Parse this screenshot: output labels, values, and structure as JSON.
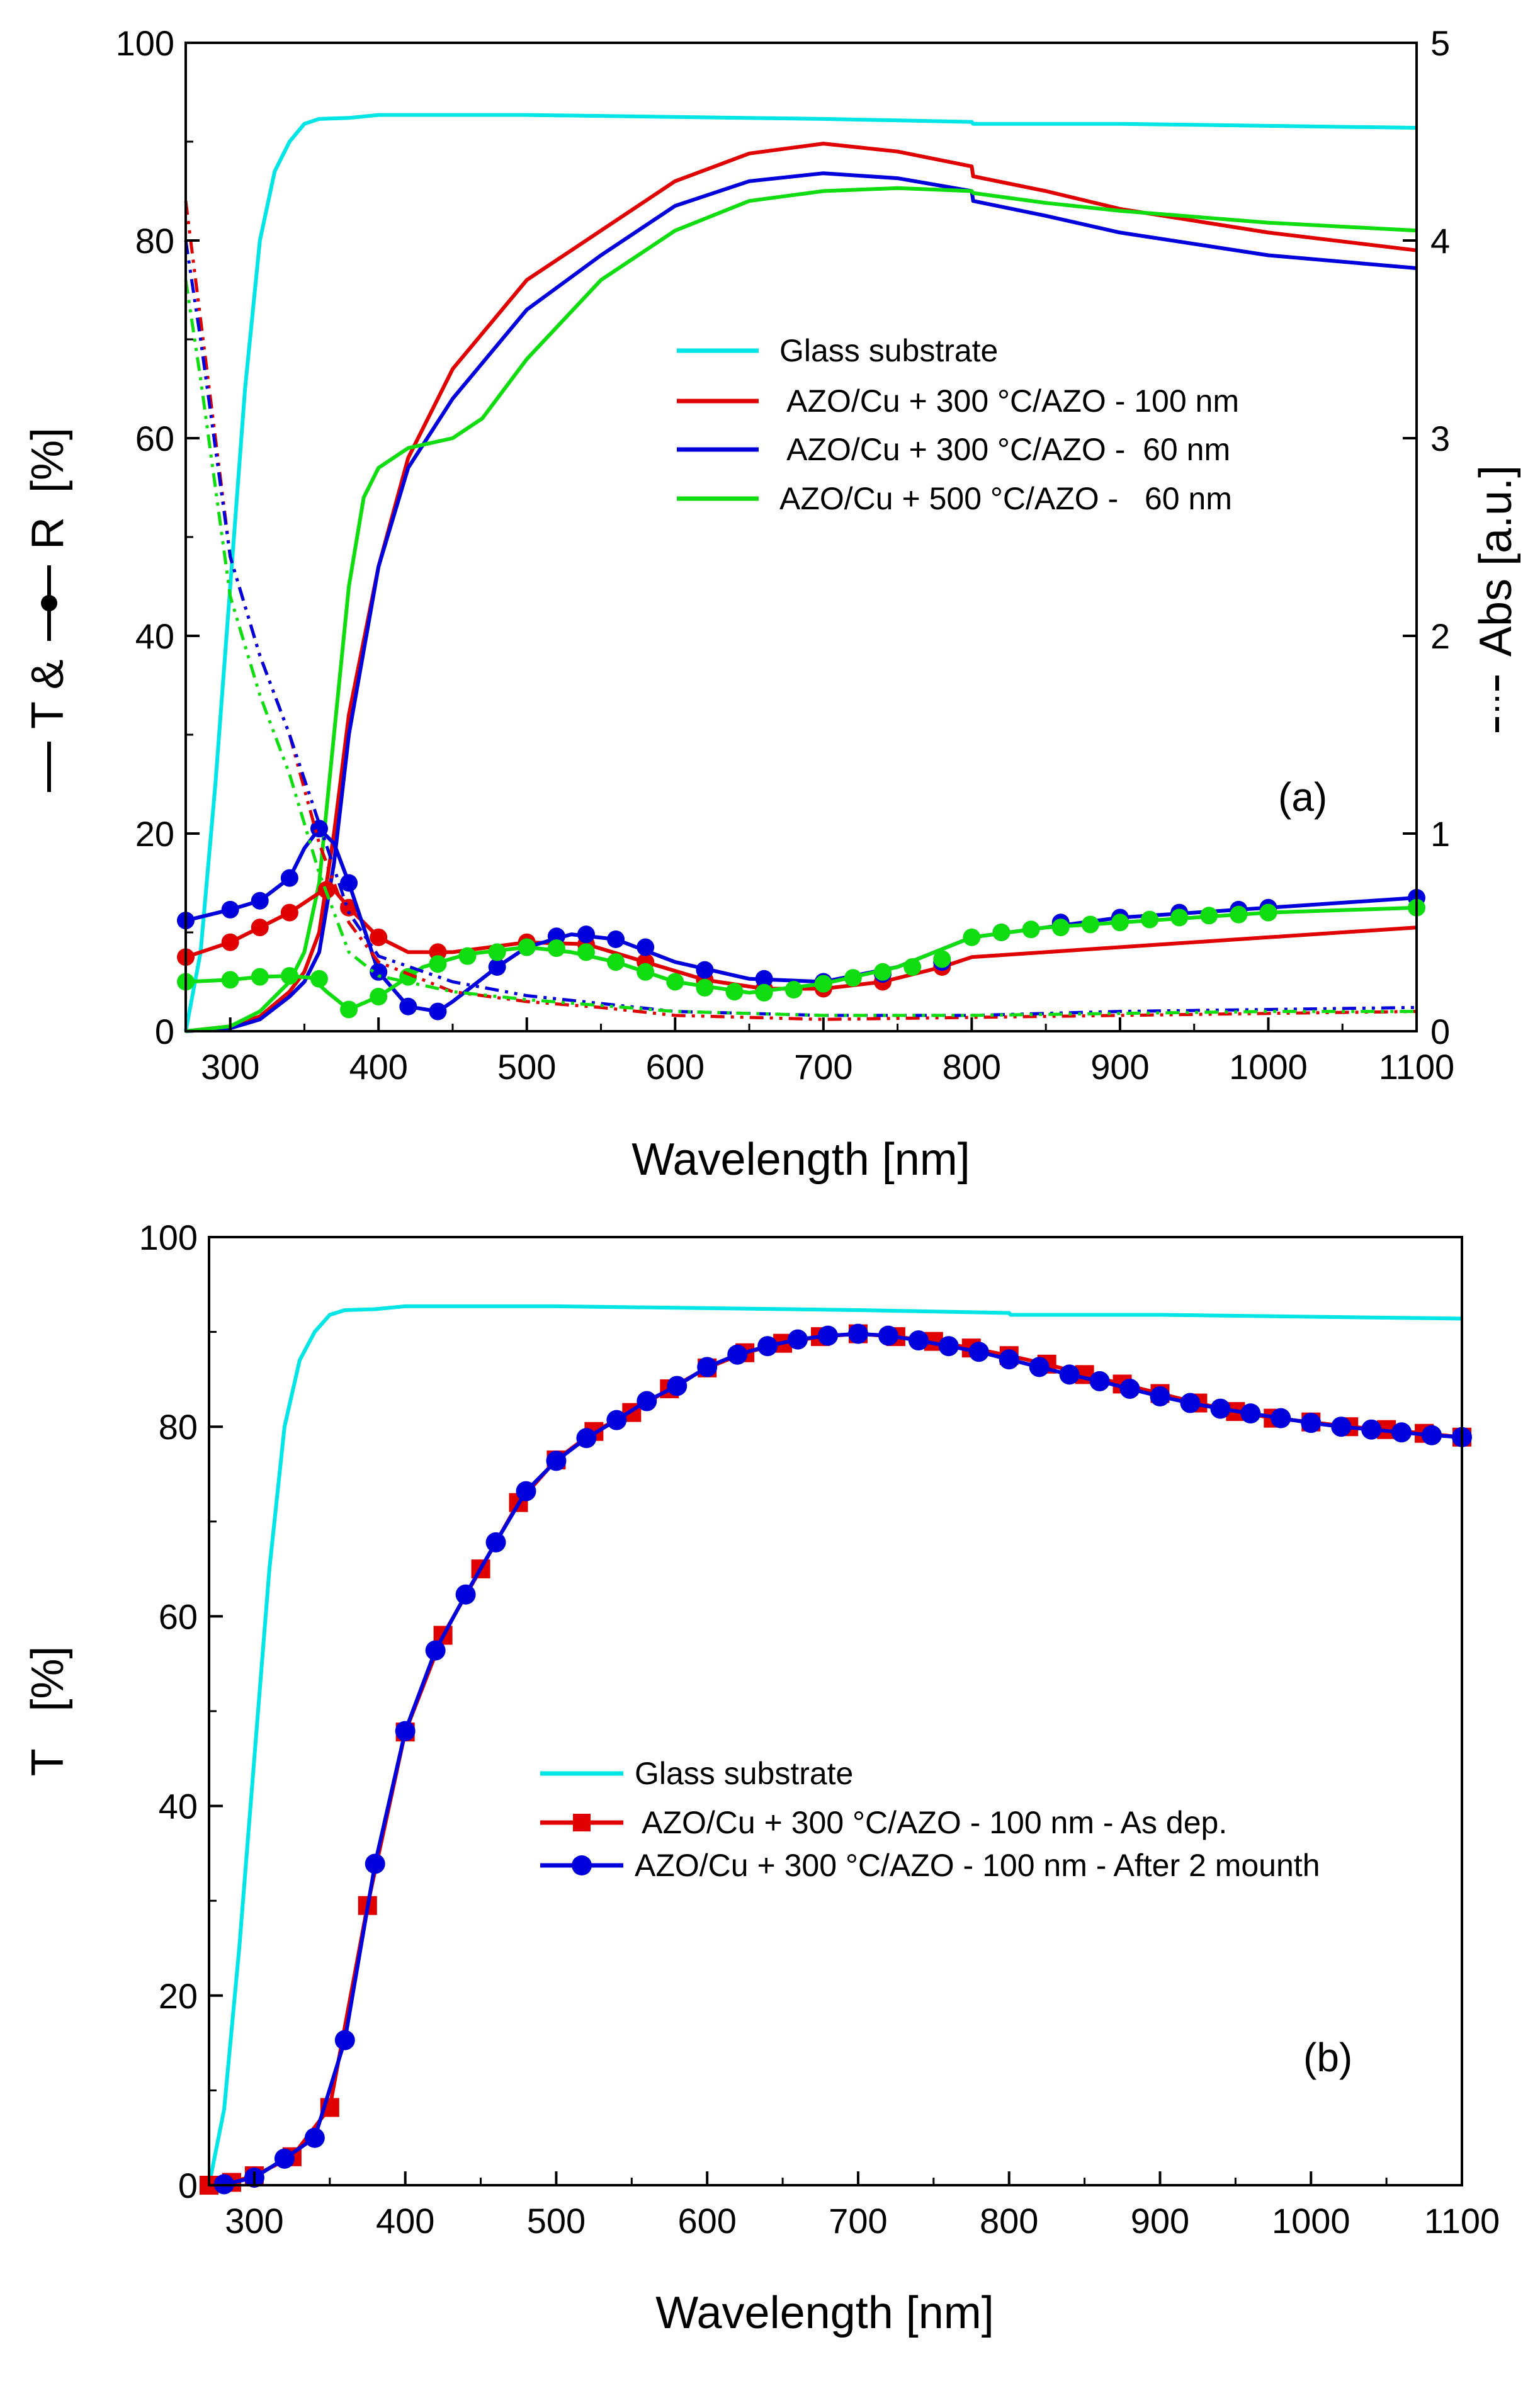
{
  "chart_data": [
    {
      "id": "a",
      "type": "line",
      "panel_label": "(a)",
      "xlabel": "Wavelength [nm]",
      "ylabel_left": "T & R [%]",
      "ylabel_left_parts": [
        "T &",
        "R",
        "[%]"
      ],
      "ylabel_right": "Abs [a.u.]",
      "xlim": [
        270,
        1100
      ],
      "ylim_left": [
        0,
        100
      ],
      "ylim_right": [
        0,
        5
      ],
      "xticks": [
        300,
        400,
        500,
        600,
        700,
        800,
        900,
        1000,
        1100
      ],
      "yticks_left": [
        0,
        20,
        40,
        60,
        80,
        100
      ],
      "yticks_right": [
        0,
        1,
        2,
        3,
        4,
        5
      ],
      "legend_position": "center-right",
      "legend": [
        {
          "label": "Glass substrate",
          "color": "#00e5e5"
        },
        {
          "label": " AZO/Cu + 300 °C/AZO - 100 nm",
          "color": "#e00000"
        },
        {
          "label": " AZO/Cu + 300 °C/AZO -  60 nm",
          "color": "#0000dd"
        },
        {
          "label": "AZO/Cu + 500 °C/AZO -   60 nm",
          "color": "#10dd10"
        }
      ],
      "series": [
        {
          "name": "Glass substrate - T",
          "color": "#00e5e5",
          "style": "solid",
          "axis": "left",
          "x": [
            270,
            280,
            290,
            300,
            310,
            320,
            330,
            340,
            350,
            360,
            380,
            400,
            500,
            600,
            700,
            800,
            801,
            900,
            1000,
            1100
          ],
          "y": [
            0,
            8,
            25,
            45,
            65,
            80,
            87,
            90,
            91.8,
            92.3,
            92.4,
            92.7,
            92.7,
            92.5,
            92.3,
            92.0,
            91.8,
            91.8,
            91.6,
            91.4
          ]
        },
        {
          "name": "AZO/Cu + 300 °C/AZO - 100 nm - T",
          "color": "#e00000",
          "style": "solid",
          "axis": "left",
          "x": [
            270,
            300,
            320,
            340,
            350,
            360,
            370,
            380,
            400,
            420,
            450,
            500,
            550,
            600,
            650,
            700,
            750,
            800,
            801,
            850,
            900,
            1000,
            1100
          ],
          "y": [
            0,
            0.5,
            1.5,
            4,
            6,
            10,
            20,
            32,
            47,
            58,
            67,
            76,
            81,
            86,
            88.8,
            89.8,
            89,
            87.5,
            86.5,
            85,
            83.2,
            80.8,
            79
          ]
        },
        {
          "name": "AZO/Cu + 300 °C/AZO - 60 nm - T",
          "color": "#0000dd",
          "style": "solid",
          "axis": "left",
          "x": [
            270,
            300,
            320,
            340,
            350,
            360,
            370,
            380,
            400,
            420,
            450,
            500,
            550,
            600,
            650,
            700,
            750,
            800,
            801,
            850,
            900,
            1000,
            1100
          ],
          "y": [
            0,
            0.3,
            1.2,
            3.5,
            5,
            8,
            17,
            30,
            47,
            57,
            64,
            73,
            78.5,
            83.5,
            86,
            86.8,
            86.3,
            85,
            84,
            82.5,
            80.8,
            78.5,
            77.2
          ]
        },
        {
          "name": "AZO/Cu + 500 °C/AZO - 60 nm - T",
          "color": "#10dd10",
          "style": "solid",
          "axis": "left",
          "x": [
            270,
            300,
            320,
            340,
            350,
            360,
            370,
            380,
            390,
            400,
            420,
            450,
            470,
            500,
            550,
            600,
            650,
            700,
            750,
            800,
            801,
            850,
            900,
            1000,
            1100
          ],
          "y": [
            0,
            0.5,
            2,
            5,
            8,
            15,
            30,
            45,
            54,
            57,
            59,
            60,
            62,
            68,
            76,
            81,
            84,
            85,
            85.3,
            85,
            84.8,
            83.8,
            83,
            81.8,
            81
          ]
        },
        {
          "name": "AZO/Cu + 300 °C/AZO - 100 nm - R",
          "color": "#e00000",
          "style": "marker-line",
          "axis": "left",
          "x": [
            270,
            300,
            320,
            340,
            360,
            370,
            380,
            400,
            420,
            450,
            500,
            540,
            580,
            620,
            660,
            700,
            740,
            780,
            800,
            850,
            900,
            1000,
            1100
          ],
          "y": [
            7.5,
            9,
            10.5,
            12,
            14,
            14.3,
            12.5,
            9.5,
            8,
            8,
            9,
            8.8,
            7,
            5.2,
            4.3,
            4.3,
            5,
            6.5,
            7.5,
            8,
            8.5,
            9.5,
            10.5
          ],
          "markers_x": [
            270,
            300,
            320,
            340,
            365,
            380,
            400,
            440,
            500,
            540,
            580,
            620,
            660,
            700,
            740,
            780
          ],
          "markers_y": [
            7.5,
            9,
            10.5,
            12,
            14.3,
            12.5,
            9.5,
            8,
            9,
            8.8,
            7,
            5.2,
            4.3,
            4.3,
            5,
            6.5
          ]
        },
        {
          "name": "AZO/Cu + 300 °C/AZO - 60 nm - R",
          "color": "#0000dd",
          "style": "marker-line",
          "axis": "left",
          "x": [
            270,
            300,
            320,
            340,
            350,
            360,
            370,
            380,
            400,
            420,
            440,
            450,
            480,
            500,
            530,
            560,
            600,
            650,
            700,
            750,
            800,
            900,
            1000,
            1100
          ],
          "y": [
            11.2,
            12.3,
            13.2,
            15.5,
            18.5,
            20.5,
            19,
            15,
            6,
            2.5,
            2,
            3,
            6.5,
            8.5,
            9.8,
            9.3,
            7,
            5.3,
            5,
            6.5,
            9.5,
            11.5,
            12.5,
            13.5
          ],
          "markers_x": [
            270,
            300,
            320,
            340,
            360,
            380,
            400,
            420,
            440,
            480,
            500,
            520,
            540,
            560,
            580,
            620,
            660,
            700,
            740,
            780,
            820,
            860,
            900,
            940,
            980,
            1000,
            1100
          ],
          "markers_y": [
            11.2,
            12.3,
            13.2,
            15.5,
            20.5,
            15,
            6,
            2.5,
            2,
            6.5,
            8.5,
            9.6,
            9.8,
            9.3,
            8.5,
            6.2,
            5.3,
            5,
            5.8,
            7,
            10,
            11,
            11.5,
            12,
            12.3,
            12.5,
            13.5
          ]
        },
        {
          "name": "AZO/Cu + 500 °C/AZO - 60 nm - R",
          "color": "#10dd10",
          "style": "marker-line",
          "axis": "left",
          "x": [
            270,
            300,
            320,
            340,
            355,
            365,
            380,
            400,
            430,
            460,
            500,
            530,
            560,
            600,
            650,
            700,
            750,
            800,
            850,
            900,
            1000,
            1100
          ],
          "y": [
            5,
            5.2,
            5.5,
            5.6,
            5.4,
            4,
            2.2,
            3.5,
            6.5,
            7.8,
            8.5,
            8,
            7,
            5,
            3.9,
            4.8,
            6.5,
            9.5,
            10.5,
            11,
            12,
            12.5
          ],
          "markers_x": [
            270,
            300,
            320,
            340,
            360,
            380,
            400,
            420,
            440,
            460,
            480,
            500,
            520,
            540,
            560,
            580,
            600,
            620,
            640,
            660,
            680,
            700,
            720,
            740,
            760,
            780,
            800,
            820,
            840,
            860,
            880,
            900,
            920,
            940,
            960,
            980,
            1000,
            1100
          ],
          "markers_y": [
            5,
            5.2,
            5.5,
            5.6,
            5.3,
            2.2,
            3.5,
            5.5,
            6.8,
            7.6,
            8,
            8.5,
            8.4,
            8,
            7,
            6,
            5,
            4.4,
            4,
            3.9,
            4.2,
            4.8,
            5.4,
            6,
            6.5,
            7.3,
            9.5,
            10,
            10.3,
            10.5,
            10.8,
            11,
            11.3,
            11.5,
            11.7,
            11.8,
            12,
            12.5
          ]
        },
        {
          "name": "AZO/Cu + 300 °C/AZO - 100 nm - Abs",
          "color": "#e00000",
          "style": "dash-dot",
          "axis": "right",
          "x": [
            270,
            280,
            300,
            320,
            340,
            360,
            380,
            400,
            450,
            500,
            550,
            600,
            700,
            800,
            900,
            1000,
            1100
          ],
          "y": [
            4.2,
            3.6,
            2.4,
            1.9,
            1.5,
            0.95,
            0.55,
            0.35,
            0.2,
            0.15,
            0.12,
            0.08,
            0.06,
            0.07,
            0.08,
            0.09,
            0.1
          ]
        },
        {
          "name": "AZO/Cu + 300 °C/AZO - 60 nm - Abs",
          "color": "#0000dd",
          "style": "dash-dot",
          "axis": "right",
          "x": [
            270,
            280,
            300,
            320,
            340,
            360,
            380,
            400,
            450,
            500,
            550,
            600,
            700,
            800,
            900,
            1000,
            1100
          ],
          "y": [
            4,
            3.5,
            2.4,
            1.9,
            1.5,
            1.05,
            0.6,
            0.38,
            0.25,
            0.18,
            0.14,
            0.1,
            0.08,
            0.08,
            0.1,
            0.11,
            0.12
          ]
        },
        {
          "name": "AZO/Cu + 500 °C/AZO - 60 nm - Abs",
          "color": "#10dd10",
          "style": "dash-dot",
          "axis": "right",
          "x": [
            270,
            280,
            300,
            320,
            330,
            340,
            360,
            380,
            400,
            450,
            500,
            550,
            600,
            700,
            800,
            900,
            1000,
            1100
          ],
          "y": [
            3.8,
            3.3,
            2.2,
            1.7,
            1.5,
            1.3,
            0.8,
            0.4,
            0.28,
            0.2,
            0.16,
            0.13,
            0.1,
            0.08,
            0.08,
            0.09,
            0.1,
            0.1
          ]
        }
      ]
    },
    {
      "id": "b",
      "type": "line",
      "panel_label": "(b)",
      "xlabel": "Wavelength [nm]",
      "ylabel": "T   [%]",
      "xlim": [
        270,
        1100
      ],
      "ylim": [
        0,
        100
      ],
      "xticks": [
        300,
        400,
        500,
        600,
        700,
        800,
        900,
        1000,
        1100
      ],
      "yticks": [
        0,
        20,
        40,
        60,
        80,
        100
      ],
      "legend_position": "center-right",
      "legend": [
        {
          "label": "Glass substrate",
          "color": "#00e5e5",
          "marker": "none"
        },
        {
          "label": " AZO/Cu + 300 °C/AZO - 100 nm - As dep.",
          "color": "#e00000",
          "marker": "square"
        },
        {
          "label": "AZO/Cu + 300 °C/AZO - 100 nm - After 2 mounth",
          "color": "#0000dd",
          "marker": "circle"
        }
      ],
      "series": [
        {
          "name": "Glass substrate",
          "color": "#00e5e5",
          "marker": "none",
          "x": [
            270,
            280,
            290,
            300,
            310,
            320,
            330,
            340,
            350,
            360,
            380,
            400,
            500,
            600,
            700,
            800,
            801,
            900,
            1000,
            1100
          ],
          "y": [
            0,
            8,
            25,
            45,
            65,
            80,
            87,
            90,
            91.8,
            92.3,
            92.4,
            92.7,
            92.7,
            92.5,
            92.3,
            92.0,
            91.8,
            91.8,
            91.6,
            91.4
          ]
        },
        {
          "name": "AZO/Cu + 300 °C/AZO - 100 nm - As dep.",
          "color": "#e00000",
          "marker": "square",
          "x": [
            270,
            285,
            300,
            325,
            350,
            375,
            400,
            425,
            450,
            475,
            500,
            525,
            550,
            575,
            600,
            625,
            650,
            675,
            700,
            725,
            750,
            775,
            800,
            825,
            850,
            875,
            900,
            925,
            950,
            975,
            1000,
            1025,
            1050,
            1075,
            1100
          ],
          "y": [
            0,
            0.3,
            1,
            3,
            8.2,
            29.5,
            47.8,
            58,
            65,
            72,
            76.5,
            79.5,
            81.5,
            84,
            86.2,
            87.8,
            88.8,
            89.5,
            89.8,
            89.5,
            89,
            88.3,
            87.5,
            86.6,
            85.5,
            84.5,
            83.5,
            82.5,
            81.6,
            80.9,
            80.5,
            80,
            79.7,
            79.3,
            78.9
          ]
        },
        {
          "name": "AZO/Cu + 300 °C/AZO - 100 nm - After 2 mounth",
          "color": "#0000dd",
          "marker": "circle",
          "x": [
            280,
            300,
            320,
            340,
            360,
            380,
            400,
            420,
            440,
            460,
            480,
            500,
            520,
            540,
            560,
            580,
            600,
            620,
            640,
            660,
            680,
            700,
            720,
            740,
            760,
            780,
            800,
            820,
            840,
            860,
            880,
            900,
            920,
            940,
            960,
            980,
            1000,
            1020,
            1040,
            1060,
            1080,
            1100
          ],
          "y": [
            0.1,
            0.8,
            2.8,
            5,
            15.3,
            33.9,
            47.9,
            56.4,
            62.3,
            67.8,
            73.2,
            76.4,
            78.8,
            80.7,
            82.7,
            84.3,
            86.3,
            87.6,
            88.5,
            89.2,
            89.6,
            89.8,
            89.6,
            89.1,
            88.5,
            87.9,
            87.1,
            86.3,
            85.5,
            84.8,
            84.0,
            83.2,
            82.5,
            81.9,
            81.4,
            80.9,
            80.4,
            80.0,
            79.7,
            79.4,
            79.1,
            78.9
          ]
        }
      ]
    }
  ]
}
